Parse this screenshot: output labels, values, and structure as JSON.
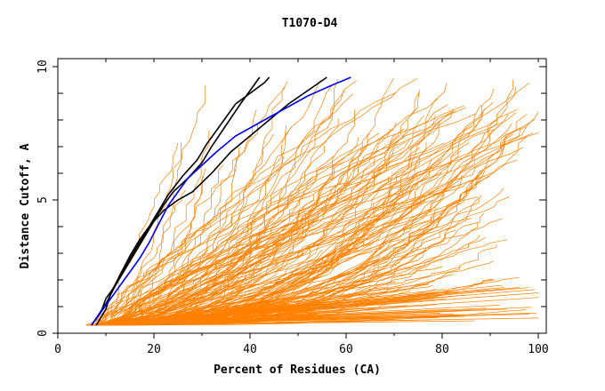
{
  "chart_data": {
    "type": "line",
    "title": "T1070-D4",
    "xlabel": "Percent of Residues (CA)",
    "ylabel": "Distance Cutoff, A",
    "xlim": [
      0,
      100
    ],
    "ylim": [
      0,
      10
    ],
    "x_ticks": [
      0,
      20,
      40,
      60,
      80,
      100
    ],
    "y_ticks": [
      0,
      5,
      10
    ],
    "x_tick_labels": [
      "0",
      "20",
      "40",
      "60",
      "80",
      "100"
    ],
    "y_tick_labels": [
      "0",
      "5",
      "10"
    ],
    "grid": false,
    "colors": {
      "background": "#ffffff",
      "model": "#ff8000",
      "highlight_black": "#000000",
      "highlight_blue": "#0000ff"
    },
    "series": [
      {
        "color": "#000000",
        "x": [
          7,
          9,
          10,
          12,
          14,
          16,
          18,
          20,
          22,
          24,
          27,
          30,
          32,
          35,
          38,
          42
        ],
        "y": [
          0.3,
          0.8,
          1.3,
          1.8,
          2.4,
          3.0,
          3.6,
          4.2,
          4.8,
          5.3,
          5.8,
          6.4,
          7.0,
          7.8,
          8.6,
          9.6
        ]
      },
      {
        "color": "#000000",
        "x": [
          8,
          10,
          11,
          13,
          15,
          17,
          19,
          21,
          23,
          26,
          29,
          31,
          33,
          35,
          37,
          40,
          43,
          44
        ],
        "y": [
          0.3,
          0.9,
          1.5,
          2.2,
          2.9,
          3.5,
          4.0,
          4.6,
          5.2,
          5.9,
          6.5,
          7.1,
          7.6,
          8.1,
          8.6,
          9.0,
          9.4,
          9.6
        ]
      },
      {
        "color": "#000000",
        "x": [
          7,
          10,
          12,
          14,
          16,
          18,
          20,
          22,
          25,
          28,
          32,
          36,
          40,
          44,
          48,
          52,
          56
        ],
        "y": [
          0.3,
          1.1,
          1.8,
          2.5,
          3.1,
          3.7,
          4.2,
          4.6,
          5.0,
          5.3,
          6.0,
          6.8,
          7.4,
          8.0,
          8.6,
          9.1,
          9.6
        ]
      },
      {
        "color": "#0000ff",
        "x": [
          7,
          9,
          11,
          13,
          15,
          17,
          19,
          21,
          23,
          25,
          27,
          30,
          33,
          37,
          42,
          47,
          52,
          57,
          61
        ],
        "y": [
          0.3,
          0.8,
          1.3,
          1.8,
          2.3,
          2.8,
          3.4,
          4.1,
          4.8,
          5.3,
          5.8,
          6.3,
          6.8,
          7.4,
          7.9,
          8.4,
          8.9,
          9.3,
          9.6
        ]
      }
    ]
  }
}
